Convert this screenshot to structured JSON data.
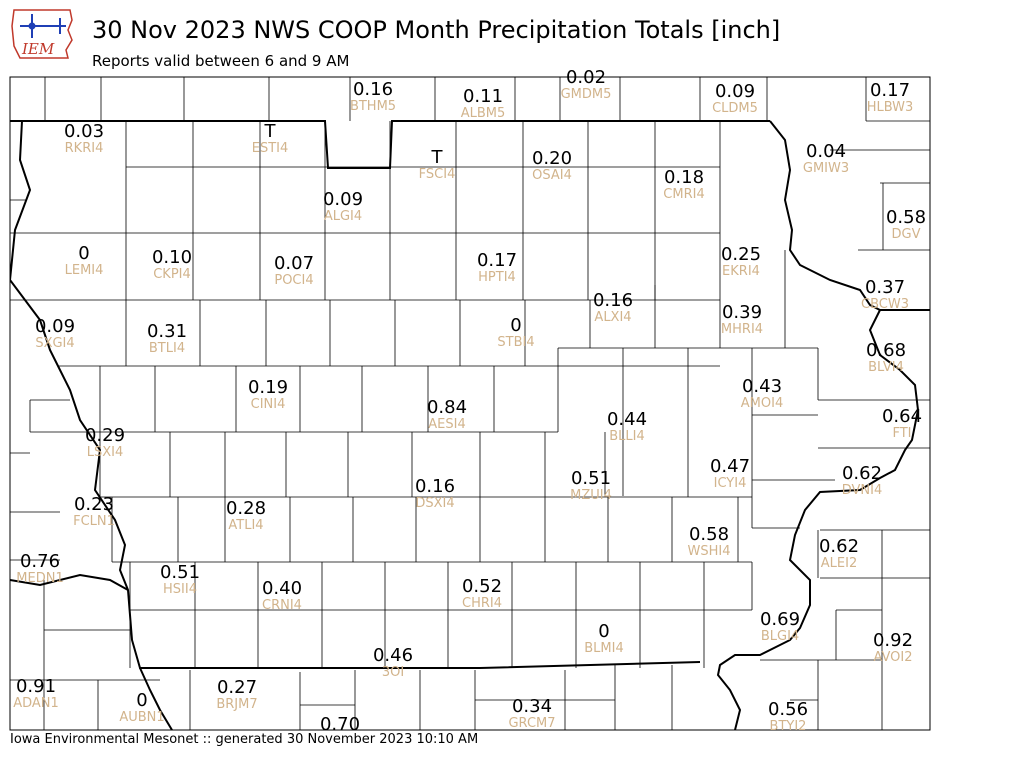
{
  "header": {
    "logo_text": "IEM",
    "title": "30 Nov 2023 NWS COOP Month Precipitation Totals [inch]",
    "subtitle": "Reports valid between 6 and 9 AM"
  },
  "footer": {
    "text": "Iowa Environmental Mesonet :: generated 30 November 2023 10:10 AM"
  },
  "colors": {
    "value_text": "#000000",
    "station_id_text": "#d2b48c",
    "county_lines": "#000000",
    "logo_red": "#c0392b",
    "logo_blue": "#1f3fb5"
  },
  "stations": [
    {
      "id": "BTHM5",
      "value": "0.16"
    },
    {
      "id": "ALBM5",
      "value": "0.11"
    },
    {
      "id": "GMDM5",
      "value": "0.02"
    },
    {
      "id": "CLDM5",
      "value": "0.09"
    },
    {
      "id": "HLBW3",
      "value": "0.17"
    },
    {
      "id": "RKRI4",
      "value": "0.03"
    },
    {
      "id": "ESTI4",
      "value": "T"
    },
    {
      "id": "FSCI4",
      "value": "T"
    },
    {
      "id": "OSAI4",
      "value": "0.20"
    },
    {
      "id": "GMIW3",
      "value": "0.04"
    },
    {
      "id": "CMRI4",
      "value": "0.18"
    },
    {
      "id": "ALGI4",
      "value": "0.09"
    },
    {
      "id": "DGV",
      "value": "0.58"
    },
    {
      "id": "LEMI4",
      "value": "0"
    },
    {
      "id": "CKPI4",
      "value": "0.10"
    },
    {
      "id": "POCI4",
      "value": "0.07"
    },
    {
      "id": "HPTI4",
      "value": "0.17"
    },
    {
      "id": "EKRI4",
      "value": "0.25"
    },
    {
      "id": "CBCW3",
      "value": "0.37"
    },
    {
      "id": "ALXI4",
      "value": "0.16"
    },
    {
      "id": "SXGI4",
      "value": "0.09"
    },
    {
      "id": "BTLI4",
      "value": "0.31"
    },
    {
      "id": "STBI4",
      "value": "0"
    },
    {
      "id": "MHRI4",
      "value": "0.39"
    },
    {
      "id": "BLVI4",
      "value": "0.68"
    },
    {
      "id": "AMOI4",
      "value": "0.43"
    },
    {
      "id": "CINI4",
      "value": "0.19"
    },
    {
      "id": "AESI4",
      "value": "0.84"
    },
    {
      "id": "BLLI4",
      "value": "0.44"
    },
    {
      "id": "FTI",
      "value": "0.64"
    },
    {
      "id": "LSXI4",
      "value": "0.29"
    },
    {
      "id": "ICYI4",
      "value": "0.47"
    },
    {
      "id": "DVNI4",
      "value": "0.62"
    },
    {
      "id": "DSXI4",
      "value": "0.16"
    },
    {
      "id": "MZUI4",
      "value": "0.51"
    },
    {
      "id": "FCLN1",
      "value": "0.23"
    },
    {
      "id": "ATLI4",
      "value": "0.28"
    },
    {
      "id": "WSHI4",
      "value": "0.58"
    },
    {
      "id": "ALEI2",
      "value": "0.62"
    },
    {
      "id": "MEDN1",
      "value": "0.76"
    },
    {
      "id": "HSII4",
      "value": "0.51"
    },
    {
      "id": "CRNI4",
      "value": "0.40"
    },
    {
      "id": "CHRI4",
      "value": "0.52"
    },
    {
      "id": "BLMI4",
      "value": "0"
    },
    {
      "id": "BLGI4",
      "value": "0.69"
    },
    {
      "id": "AVOI2",
      "value": "0.92"
    },
    {
      "id": "3OI",
      "value": "0.46"
    },
    {
      "id": "ADAN1",
      "value": "0.91"
    },
    {
      "id": "AUBN1",
      "value": "0"
    },
    {
      "id": "BRJM7",
      "value": "0.27"
    },
    {
      "id": "GRCM7",
      "value": "0.34"
    },
    {
      "id": "BTYI2",
      "value": "0.56"
    },
    {
      "id": "",
      "value": "0.70"
    }
  ]
}
